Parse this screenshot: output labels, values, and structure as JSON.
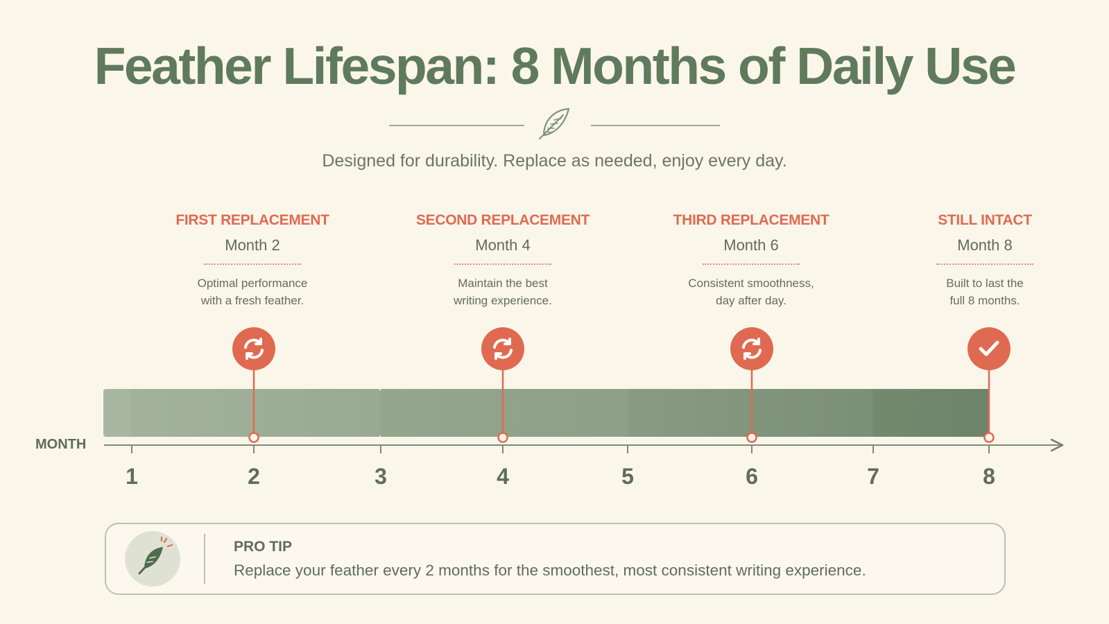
{
  "header": {
    "title": "Feather Lifespan: 8 Months of Daily Use",
    "subtitle": "Designed for durability. Replace as needed, enjoy every day."
  },
  "milestones": [
    {
      "label": "FIRST REPLACEMENT",
      "month_text": "Month 2",
      "desc_line1": "Optimal performance",
      "desc_line2": "with a fresh feather.",
      "month": 2,
      "icon": "refresh-icon"
    },
    {
      "label": "SECOND REPLACEMENT",
      "month_text": "Month 4",
      "desc_line1": "Maintain the best",
      "desc_line2": "writing experience.",
      "month": 4,
      "icon": "refresh-icon"
    },
    {
      "label": "THIRD REPLACEMENT",
      "month_text": "Month 6",
      "desc_line1": "Consistent smoothness,",
      "desc_line2": "day after day.",
      "month": 6,
      "icon": "refresh-icon"
    },
    {
      "label": "STILL INTACT",
      "month_text": "Month 8",
      "desc_line1": "Built to last the",
      "desc_line2": "full 8 months.",
      "month": 8,
      "icon": "check-icon"
    }
  ],
  "timeline": {
    "axis_label": "MONTH",
    "ticks": [
      "1",
      "2",
      "3",
      "4",
      "5",
      "6",
      "7",
      "8"
    ]
  },
  "tip": {
    "title": "PRO TIP",
    "text": "Replace your feather every 2 months for the smoothest, most consistent writing experience.",
    "icon": "feather-icon"
  },
  "colors": {
    "background": "#fbf6ea",
    "title": "#5f7a5c",
    "accent": "#df6a51",
    "bar_light": "#a2b29b",
    "bar_dark": "#6e8469",
    "text": "#5f6c5d"
  }
}
